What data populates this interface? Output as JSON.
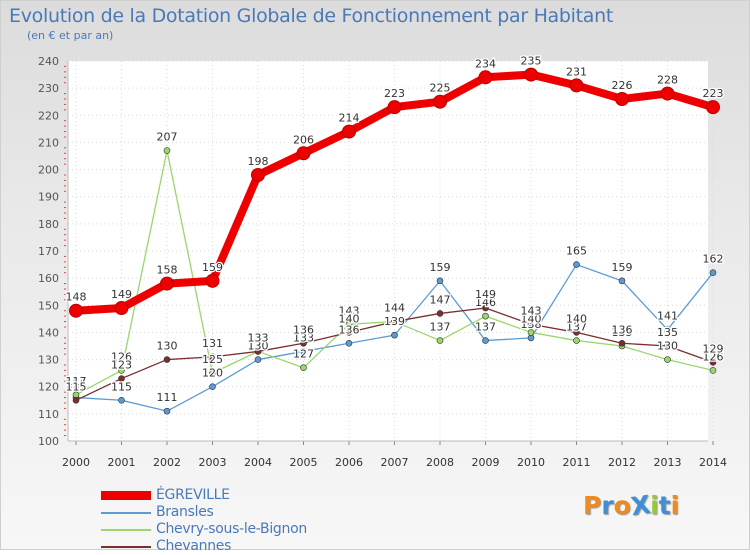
{
  "header": {
    "title": "Evolution de la Dotation Globale de Fonctionnement par Habitant",
    "subtitle": "(en € et par an)"
  },
  "logo": {
    "text": "ProXiti",
    "letters": [
      "P",
      "r",
      "o",
      "X",
      "i",
      "t",
      "i"
    ],
    "colors": [
      "#f08a1c",
      "#3f8fd6",
      "#f08a1c",
      "#3f8fd6",
      "#9bc73b",
      "#3f8fd6",
      "#f08a1c"
    ]
  },
  "chart_data": {
    "type": "line",
    "title": "Evolution de la Dotation Globale de Fonctionnement par Habitant",
    "subtitle": "(en € et par an)",
    "xlabel": "",
    "ylabel": "",
    "categories": [
      "2000",
      "2001",
      "2002",
      "2003",
      "2004",
      "2005",
      "2006",
      "2007",
      "2008",
      "2009",
      "2010",
      "2011",
      "2012",
      "2013",
      "2014"
    ],
    "ylim": [
      100,
      240
    ],
    "yticks": [
      100,
      110,
      120,
      130,
      140,
      150,
      160,
      170,
      180,
      190,
      200,
      210,
      220,
      230,
      240
    ],
    "grid": true,
    "legend_position": "bottom-left",
    "series": [
      {
        "name": "ÉGREVILLE",
        "color": "#ee0000",
        "bold": true,
        "values": [
          148,
          149,
          158,
          159,
          198,
          206,
          214,
          223,
          225,
          234,
          235,
          231,
          226,
          228,
          223
        ]
      },
      {
        "name": "Bransles",
        "color": "#5b9bd5",
        "bold": false,
        "values": [
          116,
          115,
          111,
          120,
          130,
          133,
          136,
          139,
          159,
          137,
          138,
          165,
          159,
          141,
          162
        ]
      },
      {
        "name": "Chevry-sous-le-Bignon",
        "color": "#99d66b",
        "bold": false,
        "values": [
          117,
          126,
          207,
          125,
          133,
          127,
          143,
          144,
          137,
          146,
          140,
          137,
          135,
          130,
          126
        ]
      },
      {
        "name": "Chevannes",
        "color": "#7a2e2e",
        "bold": false,
        "values": [
          115,
          123,
          130,
          131,
          133,
          136,
          140,
          144,
          147,
          149,
          143,
          140,
          136,
          135,
          129
        ]
      }
    ]
  }
}
